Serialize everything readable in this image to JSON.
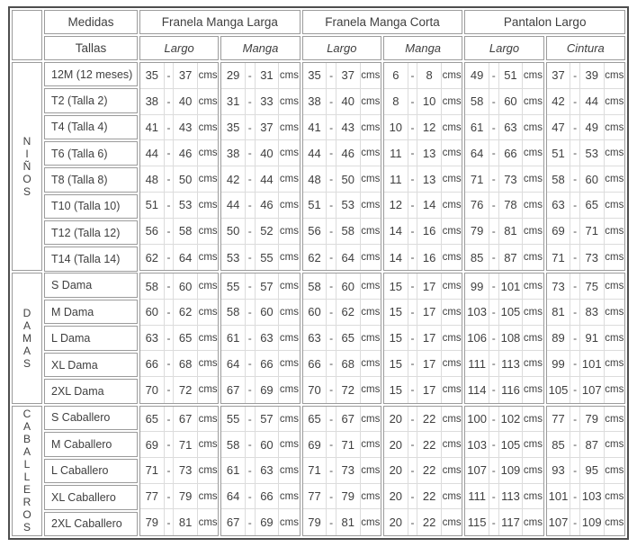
{
  "header": {
    "medidas": "Medidas",
    "tallas": "Tallas",
    "groups": [
      {
        "label": "Franela Manga Larga",
        "sub": [
          "Largo",
          "Manga"
        ]
      },
      {
        "label": "Franela Manga Corta",
        "sub": [
          "Largo",
          "Manga"
        ]
      },
      {
        "label": "Pantalon Largo",
        "sub": [
          "Largo",
          "Cintura"
        ]
      }
    ]
  },
  "unit": "cms",
  "dash": "-",
  "colors": {
    "outer_border": "#4e4e4e",
    "box_border": "#9b9b9b",
    "inner_line": "#dcdcdc",
    "text": "#3f3f3f"
  },
  "sections": [
    {
      "vertical_label": "NIÑOS",
      "rows": [
        {
          "label": "12M (12 meses)",
          "values": [
            [
              "35",
              "37"
            ],
            [
              "29",
              "31"
            ],
            [
              "35",
              "37"
            ],
            [
              "6",
              "8"
            ],
            [
              "49",
              "51"
            ],
            [
              "37",
              "39"
            ]
          ]
        },
        {
          "label": "T2 (Talla 2)",
          "values": [
            [
              "38",
              "40"
            ],
            [
              "31",
              "33"
            ],
            [
              "38",
              "40"
            ],
            [
              "8",
              "10"
            ],
            [
              "58",
              "60"
            ],
            [
              "42",
              "44"
            ]
          ]
        },
        {
          "label": "T4 (Talla 4)",
          "values": [
            [
              "41",
              "43"
            ],
            [
              "35",
              "37"
            ],
            [
              "41",
              "43"
            ],
            [
              "10",
              "12"
            ],
            [
              "61",
              "63"
            ],
            [
              "47",
              "49"
            ]
          ]
        },
        {
          "label": "T6 (Talla 6)",
          "values": [
            [
              "44",
              "46"
            ],
            [
              "38",
              "40"
            ],
            [
              "44",
              "46"
            ],
            [
              "11",
              "13"
            ],
            [
              "64",
              "66"
            ],
            [
              "51",
              "53"
            ]
          ]
        },
        {
          "label": "T8  (Talla 8)",
          "values": [
            [
              "48",
              "50"
            ],
            [
              "42",
              "44"
            ],
            [
              "48",
              "50"
            ],
            [
              "11",
              "13"
            ],
            [
              "71",
              "73"
            ],
            [
              "58",
              "60"
            ]
          ]
        },
        {
          "label": "T10 (Talla 10)",
          "values": [
            [
              "51",
              "53"
            ],
            [
              "44",
              "46"
            ],
            [
              "51",
              "53"
            ],
            [
              "12",
              "14"
            ],
            [
              "76",
              "78"
            ],
            [
              "63",
              "65"
            ]
          ]
        },
        {
          "label": "T12 (Talla 12)",
          "values": [
            [
              "56",
              "58"
            ],
            [
              "50",
              "52"
            ],
            [
              "56",
              "58"
            ],
            [
              "14",
              "16"
            ],
            [
              "79",
              "81"
            ],
            [
              "69",
              "71"
            ]
          ]
        },
        {
          "label": "T14 (Talla 14)",
          "values": [
            [
              "62",
              "64"
            ],
            [
              "53",
              "55"
            ],
            [
              "62",
              "64"
            ],
            [
              "14",
              "16"
            ],
            [
              "85",
              "87"
            ],
            [
              "71",
              "73"
            ]
          ]
        }
      ]
    },
    {
      "vertical_label": "DAMAS",
      "rows": [
        {
          "label": "S Dama",
          "values": [
            [
              "58",
              "60"
            ],
            [
              "55",
              "57"
            ],
            [
              "58",
              "60"
            ],
            [
              "15",
              "17"
            ],
            [
              "99",
              "101"
            ],
            [
              "73",
              "75"
            ]
          ]
        },
        {
          "label": "M Dama",
          "values": [
            [
              "60",
              "62"
            ],
            [
              "58",
              "60"
            ],
            [
              "60",
              "62"
            ],
            [
              "15",
              "17"
            ],
            [
              "103",
              "105"
            ],
            [
              "81",
              "83"
            ]
          ]
        },
        {
          "label": "L Dama",
          "values": [
            [
              "63",
              "65"
            ],
            [
              "61",
              "63"
            ],
            [
              "63",
              "65"
            ],
            [
              "15",
              "17"
            ],
            [
              "106",
              "108"
            ],
            [
              "89",
              "91"
            ]
          ]
        },
        {
          "label": "XL Dama",
          "values": [
            [
              "66",
              "68"
            ],
            [
              "64",
              "66"
            ],
            [
              "66",
              "68"
            ],
            [
              "15",
              "17"
            ],
            [
              "111",
              "113"
            ],
            [
              "99",
              "101"
            ]
          ]
        },
        {
          "label": "2XL Dama",
          "values": [
            [
              "70",
              "72"
            ],
            [
              "67",
              "69"
            ],
            [
              "70",
              "72"
            ],
            [
              "15",
              "17"
            ],
            [
              "114",
              "116"
            ],
            [
              "105",
              "107"
            ]
          ]
        }
      ]
    },
    {
      "vertical_label": "CABALLEROS",
      "rows": [
        {
          "label": "S Caballero",
          "values": [
            [
              "65",
              "67"
            ],
            [
              "55",
              "57"
            ],
            [
              "65",
              "67"
            ],
            [
              "20",
              "22"
            ],
            [
              "100",
              "102"
            ],
            [
              "77",
              "79"
            ]
          ]
        },
        {
          "label": "M Caballero",
          "values": [
            [
              "69",
              "71"
            ],
            [
              "58",
              "60"
            ],
            [
              "69",
              "71"
            ],
            [
              "20",
              "22"
            ],
            [
              "103",
              "105"
            ],
            [
              "85",
              "87"
            ]
          ]
        },
        {
          "label": "L Caballero",
          "values": [
            [
              "71",
              "73"
            ],
            [
              "61",
              "63"
            ],
            [
              "71",
              "73"
            ],
            [
              "20",
              "22"
            ],
            [
              "107",
              "109"
            ],
            [
              "93",
              "95"
            ]
          ]
        },
        {
          "label": "XL Caballero",
          "values": [
            [
              "77",
              "79"
            ],
            [
              "64",
              "66"
            ],
            [
              "77",
              "79"
            ],
            [
              "20",
              "22"
            ],
            [
              "111",
              "113"
            ],
            [
              "101",
              "103"
            ]
          ]
        },
        {
          "label": "2XL Caballero",
          "values": [
            [
              "79",
              "81"
            ],
            [
              "67",
              "69"
            ],
            [
              "79",
              "81"
            ],
            [
              "20",
              "22"
            ],
            [
              "115",
              "117"
            ],
            [
              "107",
              "109"
            ]
          ]
        }
      ]
    }
  ]
}
